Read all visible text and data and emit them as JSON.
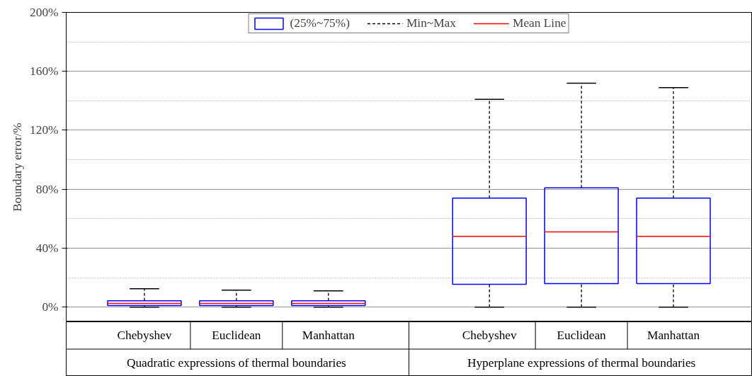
{
  "chart_data": {
    "type": "box",
    "ylabel": "Boundary error/%",
    "categories": [
      "Chebyshev",
      "Euclidean",
      "Manhattan",
      "Chebyshev",
      "Euclidean",
      "Manhattan"
    ],
    "annotations": [
      "Quadratic expressions of thermal boundaries",
      "Hyperplane expressions of thermal boundaries",
      "Min~Max",
      "Mean Line"
    ],
    "series": [
      {
        "name": "(25%~75%)",
        "color": "#0000ff",
        "boxes": [
          {
            "low": 0,
            "q1": 1,
            "median": null,
            "q3": 4.3,
            "high": 12.5,
            "mean": 2.5
          },
          {
            "low": 0,
            "q1": 1,
            "median": null,
            "q3": 4.3,
            "high": 11.5,
            "mean": 2.5
          },
          {
            "low": 0,
            "q1": 1,
            "median": null,
            "q3": 4.3,
            "high": 11,
            "mean": 2.5
          },
          {
            "low": 0,
            "q1": 15.5,
            "median": null,
            "q3": 74,
            "high": 141,
            "mean": 48
          },
          {
            "low": 0,
            "q1": 16,
            "median": null,
            "q3": 81,
            "high": 152,
            "mean": 51
          },
          {
            "low": 0,
            "q1": 16,
            "median": null,
            "q3": 74,
            "high": 149,
            "mean": 48
          }
        ]
      }
    ],
    "ylim": [
      -10,
      200
    ],
    "yticks": [
      {
        "value": 0,
        "label": "0%"
      },
      {
        "value": 40,
        "label": "40%"
      },
      {
        "value": 80,
        "label": "80%"
      },
      {
        "value": 120,
        "label": "120%"
      },
      {
        "value": 160,
        "label": "160%"
      },
      {
        "value": 200,
        "label": "200%"
      }
    ],
    "grid": "y",
    "legend": "top"
  }
}
